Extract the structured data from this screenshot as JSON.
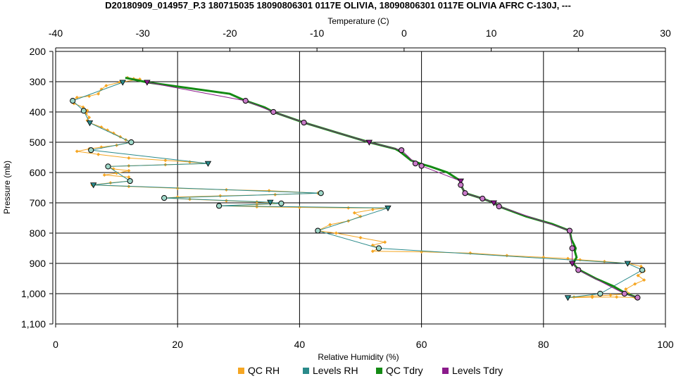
{
  "chart_data": {
    "type": "scatter",
    "title": "D20180909_014957_P.3 180715035 18090806301 0117E OLIVIA, 18090806301 0117E OLIVIA AFRC C-130J, ---",
    "xlabel_bottom": "Relative Humidity (%)",
    "xlabel_top": "Temperature (C)",
    "ylabel": "Pressure (mb)",
    "x_bottom_range": [
      0,
      100
    ],
    "x_top_range": [
      -40,
      30
    ],
    "y_range": [
      200,
      1100
    ],
    "y_inverted": true,
    "grid": true,
    "x_bottom_ticks": [
      "0",
      "20",
      "40",
      "60",
      "80",
      "100"
    ],
    "x_top_ticks": [
      "-40",
      "-30",
      "-20",
      "-10",
      "0",
      "10",
      "20",
      "30"
    ],
    "y_ticks": [
      "200",
      "300",
      "400",
      "500",
      "600",
      "700",
      "800",
      "900",
      "1,000",
      "1,100"
    ],
    "legend_position": "bottom",
    "series": [
      {
        "name": "QC RH",
        "axis": "bottom",
        "color": "#f5a623",
        "points": [
          [
            11.8,
            287
          ],
          [
            12.8,
            290
          ],
          [
            13.8,
            292
          ],
          [
            10.5,
            302
          ],
          [
            8.3,
            313
          ],
          [
            7.5,
            325
          ],
          [
            7.0,
            340
          ],
          [
            5.5,
            348
          ],
          [
            3.5,
            352
          ],
          [
            2.8,
            363
          ],
          [
            3.0,
            372
          ],
          [
            4.5,
            384
          ],
          [
            5.2,
            395
          ],
          [
            5.0,
            405
          ],
          [
            5.5,
            418
          ],
          [
            5.2,
            428
          ],
          [
            5.6,
            436
          ],
          [
            7.5,
            450
          ],
          [
            8.5,
            460
          ],
          [
            9.5,
            470
          ],
          [
            10.6,
            482
          ],
          [
            11.5,
            492
          ],
          [
            12.3,
            500
          ],
          [
            10.0,
            510
          ],
          [
            7.5,
            516
          ],
          [
            5.5,
            522
          ],
          [
            3.5,
            530
          ],
          [
            7.0,
            540
          ],
          [
            12.0,
            552
          ],
          [
            18.0,
            560
          ],
          [
            22.0,
            565
          ],
          [
            25.0,
            570
          ],
          [
            18.0,
            574
          ],
          [
            12.0,
            578
          ],
          [
            8.5,
            580
          ],
          [
            9.5,
            588
          ],
          [
            12.0,
            594
          ],
          [
            10.0,
            602
          ],
          [
            8.0,
            608
          ],
          [
            12.0,
            615
          ],
          [
            12.2,
            628
          ],
          [
            9.0,
            634
          ],
          [
            6.0,
            641
          ],
          [
            12.0,
            646
          ],
          [
            20.0,
            652
          ],
          [
            28.0,
            657
          ],
          [
            35.0,
            660
          ],
          [
            43.0,
            668
          ],
          [
            36.0,
            673
          ],
          [
            27.0,
            677
          ],
          [
            20.0,
            681
          ],
          [
            18.0,
            684
          ],
          [
            22.0,
            688
          ],
          [
            28.0,
            693
          ],
          [
            33.0,
            697
          ],
          [
            37.0,
            702
          ],
          [
            33.0,
            706
          ],
          [
            27.0,
            710
          ],
          [
            33.0,
            713
          ],
          [
            40.0,
            715
          ],
          [
            48.0,
            717
          ],
          [
            54.5,
            717
          ],
          [
            52.0,
            722
          ],
          [
            49.0,
            733
          ],
          [
            50.0,
            745
          ],
          [
            48.0,
            760
          ],
          [
            45.0,
            772
          ],
          [
            43.0,
            792
          ],
          [
            46.0,
            800
          ],
          [
            50.0,
            815
          ],
          [
            54.0,
            830
          ],
          [
            52.0,
            840
          ],
          [
            53.0,
            850
          ],
          [
            52.0,
            860
          ],
          [
            60.0,
            862
          ],
          [
            68.0,
            866
          ],
          [
            74.0,
            874
          ],
          [
            80.0,
            880
          ],
          [
            84.0,
            884
          ],
          [
            86.0,
            888
          ],
          [
            90.0,
            894
          ],
          [
            94.0,
            900
          ],
          [
            96.0,
            910
          ],
          [
            96.5,
            925
          ],
          [
            95.5,
            940
          ],
          [
            96.5,
            955
          ],
          [
            95.0,
            968
          ],
          [
            93.5,
            985
          ],
          [
            94.0,
            1000
          ],
          [
            91.0,
            1005
          ],
          [
            88.0,
            1008
          ],
          [
            85.0,
            1011
          ],
          [
            84.0,
            1013
          ],
          [
            88.0,
            1012
          ],
          [
            92.0,
            1011
          ],
          [
            95.0,
            1013
          ]
        ]
      },
      {
        "name": "Levels RH",
        "axis": "bottom",
        "color": "#2a8a8a",
        "points": [
          [
            11.0,
            302
          ],
          [
            2.8,
            363
          ],
          [
            4.6,
            396
          ],
          [
            5.6,
            436
          ],
          [
            12.4,
            500
          ],
          [
            5.8,
            526
          ],
          [
            25.0,
            570
          ],
          [
            8.6,
            580
          ],
          [
            12.2,
            628
          ],
          [
            6.2,
            641
          ],
          [
            43.5,
            668
          ],
          [
            17.8,
            684
          ],
          [
            35.2,
            698
          ],
          [
            37.0,
            702
          ],
          [
            26.8,
            710
          ],
          [
            54.5,
            717
          ],
          [
            43.0,
            792
          ],
          [
            53.0,
            850
          ],
          [
            93.8,
            900
          ],
          [
            96.2,
            922
          ],
          [
            89.3,
            1000
          ],
          [
            84.0,
            1013
          ]
        ]
      },
      {
        "name": "QC Tdry",
        "axis": "top",
        "color": "#148a14",
        "points": [
          [
            -32.0,
            287
          ],
          [
            -29.5,
            302
          ],
          [
            -25.0,
            320
          ],
          [
            -20.0,
            340
          ],
          [
            -18.2,
            363
          ],
          [
            -16.0,
            385
          ],
          [
            -15.0,
            400
          ],
          [
            -11.5,
            435
          ],
          [
            -7.5,
            470
          ],
          [
            -4.0,
            500
          ],
          [
            -1.0,
            522
          ],
          [
            -0.5,
            530
          ],
          [
            0.8,
            560
          ],
          [
            2.0,
            572
          ],
          [
            3.0,
            580
          ],
          [
            5.0,
            600
          ],
          [
            6.5,
            628
          ],
          [
            6.5,
            641
          ],
          [
            7.0,
            668
          ],
          [
            9.0,
            686
          ],
          [
            10.3,
            700
          ],
          [
            10.9,
            712
          ],
          [
            14.0,
            745
          ],
          [
            17.0,
            770
          ],
          [
            19.0,
            792
          ],
          [
            19.2,
            820
          ],
          [
            19.7,
            850
          ],
          [
            19.6,
            860
          ],
          [
            19.8,
            880
          ],
          [
            19.4,
            900
          ],
          [
            20.0,
            920
          ],
          [
            22.0,
            950
          ],
          [
            24.0,
            975
          ],
          [
            25.5,
            1000
          ],
          [
            26.8,
            1013
          ]
        ]
      },
      {
        "name": "Levels Tdry",
        "axis": "top",
        "color": "#8b1a8b",
        "points": [
          [
            -29.5,
            302
          ],
          [
            -18.2,
            363
          ],
          [
            -15.0,
            400
          ],
          [
            -11.5,
            435
          ],
          [
            -4.0,
            500
          ],
          [
            -0.3,
            526
          ],
          [
            1.3,
            570
          ],
          [
            2.0,
            578
          ],
          [
            6.5,
            628
          ],
          [
            6.5,
            641
          ],
          [
            7.0,
            668
          ],
          [
            9.0,
            686
          ],
          [
            10.3,
            700
          ],
          [
            10.9,
            712
          ],
          [
            19.0,
            792
          ],
          [
            19.3,
            850
          ],
          [
            19.3,
            900
          ],
          [
            20.0,
            922
          ],
          [
            25.3,
            1000
          ],
          [
            26.8,
            1013
          ]
        ]
      }
    ]
  }
}
